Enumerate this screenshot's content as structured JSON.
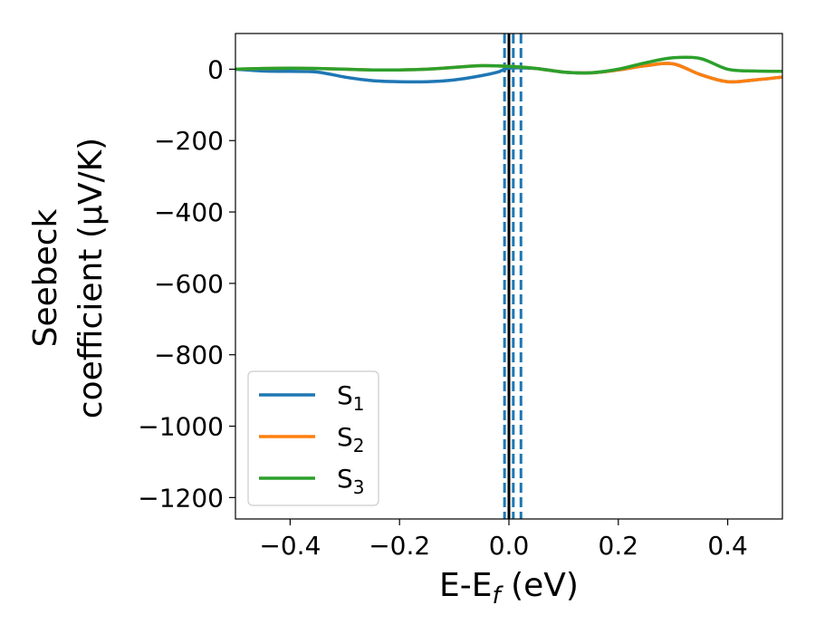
{
  "chart_data": {
    "type": "line",
    "xlabel": "E-E",
    "xlabel_sub": "f",
    "xlabel_unit": " (eV)",
    "ylabel_line1": "Seebeck",
    "ylabel_line2": "coefficient  (μV/K)",
    "xlim": [
      -0.5,
      0.5
    ],
    "ylim": [
      -1260,
      100
    ],
    "xticks": [
      -0.4,
      -0.2,
      0.0,
      0.2,
      0.4
    ],
    "xtick_labels": [
      "−0.4",
      "−0.2",
      "0.0",
      "0.2",
      "0.4"
    ],
    "yticks": [
      0,
      -200,
      -400,
      -600,
      -800,
      -1000,
      -1200
    ],
    "ytick_labels": [
      "0",
      "−200",
      "−400",
      "−600",
      "−800",
      "−1000",
      "−1200"
    ],
    "legend_position": "lower-left",
    "vertical_lines": [
      {
        "x": 0.0,
        "style": "solid",
        "color": "#000000"
      },
      {
        "x": -0.008,
        "style": "dashed",
        "color": "#1f77b4"
      },
      {
        "x": 0.008,
        "style": "dashed",
        "color": "#1f77b4"
      },
      {
        "x": 0.022,
        "style": "dashed",
        "color": "#1f77b4"
      }
    ],
    "series": [
      {
        "name": "S",
        "sub": "1",
        "color": "#1f77b4",
        "x": [
          -0.5,
          -0.45,
          -0.4,
          -0.35,
          -0.3,
          -0.25,
          -0.2,
          -0.15,
          -0.1,
          -0.05,
          -0.02,
          0.0,
          0.05,
          0.1,
          0.15,
          0.2,
          0.25,
          0.3,
          0.35,
          0.4,
          0.45,
          0.5
        ],
        "y": [
          0,
          -5,
          -6,
          -8,
          -22,
          -32,
          -35,
          -35,
          -30,
          -18,
          -8,
          3,
          2,
          -8,
          -10,
          -2,
          10,
          15,
          -15,
          -35,
          -30,
          -22
        ]
      },
      {
        "name": "S",
        "sub": "2",
        "color": "#ff7f0e",
        "x": [
          -0.5,
          -0.45,
          -0.4,
          -0.35,
          -0.3,
          -0.25,
          -0.2,
          -0.15,
          -0.1,
          -0.05,
          0.0,
          0.05,
          0.1,
          0.15,
          0.2,
          0.25,
          0.3,
          0.35,
          0.4,
          0.45,
          0.5
        ],
        "y": [
          0,
          2,
          3,
          2,
          0,
          -2,
          -2,
          0,
          5,
          10,
          8,
          2,
          -8,
          -10,
          -2,
          10,
          15,
          -15,
          -35,
          -30,
          -22
        ]
      },
      {
        "name": "S",
        "sub": "3",
        "color": "#2ca02c",
        "x": [
          -0.5,
          -0.45,
          -0.4,
          -0.35,
          -0.3,
          -0.25,
          -0.2,
          -0.15,
          -0.1,
          -0.05,
          0.0,
          0.05,
          0.1,
          0.15,
          0.2,
          0.25,
          0.3,
          0.35,
          0.4,
          0.45,
          0.5
        ],
        "y": [
          0,
          2,
          3,
          2,
          0,
          -2,
          -2,
          0,
          5,
          10,
          8,
          2,
          -8,
          -10,
          0,
          18,
          32,
          30,
          0,
          -5,
          -6
        ]
      }
    ]
  }
}
